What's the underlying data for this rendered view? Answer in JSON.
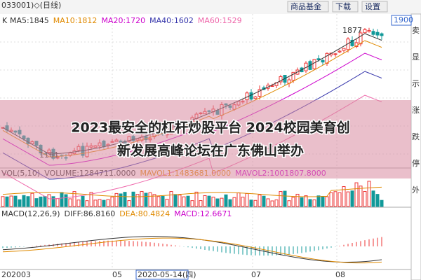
{
  "header": {
    "code": "033001)◇(日线)",
    "k": "K",
    "ma": [
      {
        "label": "MA5:1845",
        "color": "#333333"
      },
      {
        "label": "MA10:1812",
        "color": "#e08a00"
      },
      {
        "label": "MA20:1720",
        "color": "#cc00cc"
      },
      {
        "label": "MA40:1602",
        "color": "#3333aa"
      },
      {
        "label": "MA60:1529",
        "color": "#ee66aa"
      }
    ]
  },
  "toolbar": {
    "buttons": [
      "商品基金",
      "下载",
      "设置"
    ],
    "price_box": "1900"
  },
  "side_panel": [
    "卖",
    "显",
    "示",
    "涨",
    "跌",
    "停",
    "外"
  ],
  "price_labels": {
    "high": "1877",
    "low": "1161"
  },
  "volume": {
    "items": [
      {
        "label": "VOL(5,10)",
        "color": "#333333"
      },
      {
        "label": "VOLUME:1284711.0000",
        "color": "#333333"
      },
      {
        "label": "MAVOL1:1483681.0000",
        "color": "#e08a00"
      },
      {
        "label": "MAVOL2:1001807.8000",
        "color": "#cc00cc"
      }
    ]
  },
  "macd": {
    "items": [
      {
        "label": "MACD(12,26,9)",
        "color": "#333333"
      },
      {
        "label": "DIFF:86.8160",
        "color": "#333333"
      },
      {
        "label": "DEA:80.4824",
        "color": "#e08a00"
      },
      {
        "label": "MACD:12.6671",
        "color": "#cc00cc"
      }
    ]
  },
  "x_axis": [
    "202003",
    "05",
    "2020-05-14(四)",
    "07",
    "08"
  ],
  "banner": [
    "2023最安全的杠杆炒股平台 2024校园美育创",
    "新发展高峰论坛在广东佛山举办"
  ]
}
